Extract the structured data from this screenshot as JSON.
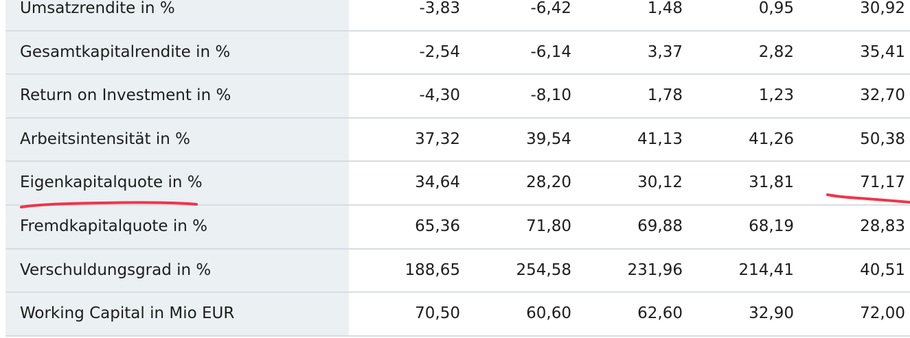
{
  "table": {
    "rows": [
      {
        "label": "Umsatzrendite in %",
        "values": [
          "-3,83",
          "-6,42",
          "1,48",
          "0,95",
          "30,92"
        ]
      },
      {
        "label": "Gesamtkapitalrendite in %",
        "values": [
          "-2,54",
          "-6,14",
          "3,37",
          "2,82",
          "35,41"
        ]
      },
      {
        "label": "Return on Investment in %",
        "values": [
          "-4,30",
          "-8,10",
          "1,78",
          "1,23",
          "32,70"
        ]
      },
      {
        "label": "Arbeitsintensität in %",
        "values": [
          "37,32",
          "39,54",
          "41,13",
          "41,26",
          "50,38"
        ]
      },
      {
        "label": "Eigenkapitalquote in %",
        "values": [
          "34,64",
          "28,20",
          "30,12",
          "31,81",
          "71,17"
        ]
      },
      {
        "label": "Fremdkapitalquote in %",
        "values": [
          "65,36",
          "71,80",
          "69,88",
          "68,19",
          "28,83"
        ]
      },
      {
        "label": "Verschuldungsgrad in %",
        "values": [
          "188,65",
          "254,58",
          "231,96",
          "214,41",
          "40,51"
        ]
      },
      {
        "label": "Working Capital in Mio EUR",
        "values": [
          "70,50",
          "60,60",
          "62,60",
          "32,90",
          "72,00"
        ]
      }
    ]
  },
  "annotations": {
    "color": "#f0344a"
  }
}
